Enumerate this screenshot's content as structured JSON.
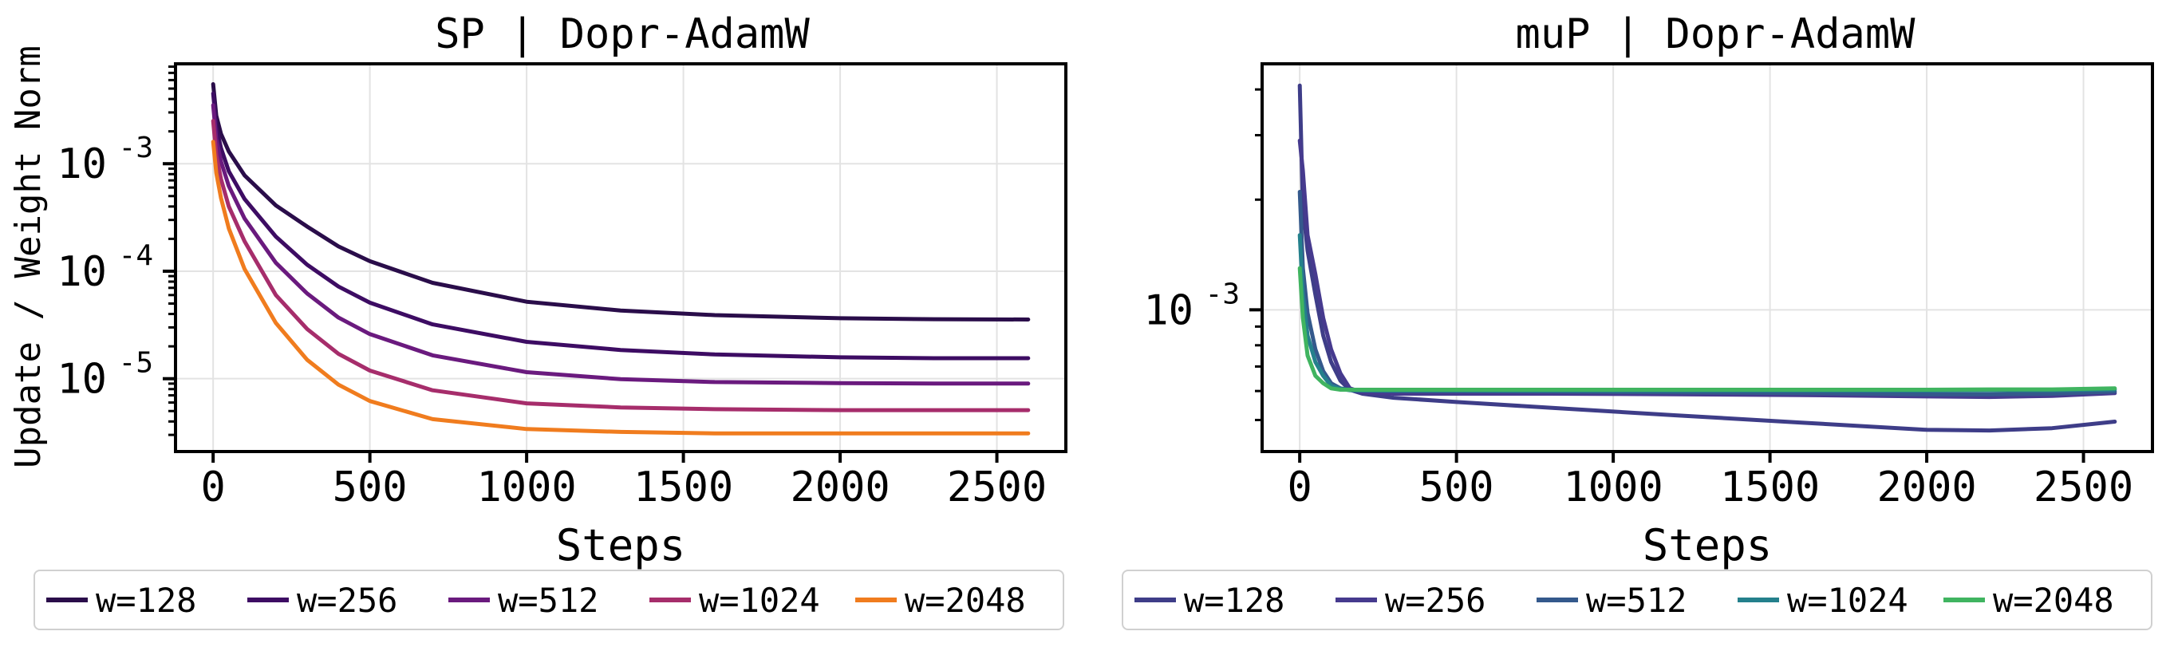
{
  "ylabel": "Update / Weight Norm",
  "chart_data": [
    {
      "type": "line",
      "title": "SP | Dopr-AdamW",
      "xlabel": "Steps",
      "ylabel": "Update / Weight Norm",
      "xlim": [
        -120,
        2720
      ],
      "ylim": [
        2.1e-06,
        0.0085
      ],
      "yscale": "log",
      "grid": true,
      "legend_position": "bottom",
      "x_ticks": [
        0,
        500,
        1000,
        1500,
        2000,
        2500
      ],
      "x_tick_labels": [
        "0",
        "500",
        "1000",
        "1500",
        "2000",
        "2500"
      ],
      "y_ticks": [
        1e-05,
        0.0001,
        0.001
      ],
      "y_tick_labels": [
        "10",
        "10",
        "10"
      ],
      "y_tick_exponents": [
        "-5",
        "-4",
        "-3"
      ],
      "series": [
        {
          "name": "w=128",
          "color": "#2a0d4a",
          "x": [
            0,
            10,
            25,
            50,
            100,
            200,
            300,
            400,
            500,
            700,
            1000,
            1300,
            1600,
            2000,
            2300,
            2600
          ],
          "y": [
            0.0055,
            0.0028,
            0.0019,
            0.0013,
            0.00078,
            0.00041,
            0.00026,
            0.00017,
            0.000124,
            7.8e-05,
            5.2e-05,
            4.3e-05,
            3.9e-05,
            3.65e-05,
            3.58e-05,
            3.55e-05
          ]
        },
        {
          "name": "w=256",
          "color": "#3d0c63",
          "x": [
            0,
            10,
            25,
            50,
            100,
            200,
            300,
            400,
            500,
            700,
            1000,
            1300,
            1600,
            2000,
            2300,
            2600
          ],
          "y": [
            0.0045,
            0.0022,
            0.0014,
            0.00085,
            0.00047,
            0.00021,
            0.000115,
            7.2e-05,
            5.1e-05,
            3.2e-05,
            2.2e-05,
            1.85e-05,
            1.68e-05,
            1.58e-05,
            1.55e-05,
            1.55e-05
          ]
        },
        {
          "name": "w=512",
          "color": "#6a1a7e",
          "x": [
            0,
            10,
            25,
            50,
            100,
            200,
            300,
            400,
            500,
            700,
            1000,
            1300,
            1600,
            2000,
            2300,
            2600
          ],
          "y": [
            0.0035,
            0.0017,
            0.00105,
            0.00062,
            0.00031,
            0.00012,
            6.2e-05,
            3.7e-05,
            2.6e-05,
            1.65e-05,
            1.15e-05,
            9.9e-06,
            9.3e-06,
            9.1e-06,
            9e-06,
            9e-06
          ]
        },
        {
          "name": "w=1024",
          "color": "#a62d6b",
          "x": [
            0,
            10,
            25,
            50,
            100,
            200,
            300,
            400,
            500,
            700,
            1000,
            1300,
            1600,
            2000,
            2300,
            2600
          ],
          "y": [
            0.0025,
            0.0012,
            0.00072,
            0.0004,
            0.00019,
            6e-05,
            2.9e-05,
            1.7e-05,
            1.19e-05,
            7.8e-06,
            5.9e-06,
            5.4e-06,
            5.2e-06,
            5.1e-06,
            5.1e-06,
            5.1e-06
          ]
        },
        {
          "name": "w=2048",
          "color": "#f07c1e",
          "x": [
            0,
            10,
            25,
            50,
            100,
            200,
            300,
            400,
            500,
            700,
            1000,
            1300,
            1600,
            2000,
            2300,
            2600
          ],
          "y": [
            0.0016,
            0.00082,
            0.00048,
            0.00025,
            0.000105,
            3.3e-05,
            1.5e-05,
            8.8e-06,
            6.2e-06,
            4.2e-06,
            3.4e-06,
            3.2e-06,
            3.1e-06,
            3.1e-06,
            3.1e-06,
            3.1e-06
          ]
        }
      ]
    },
    {
      "type": "line",
      "title": "muP | Dopr-AdamW",
      "xlabel": "Steps",
      "ylabel": "",
      "xlim": [
        -120,
        2720
      ],
      "ylim": [
        0.00041,
        0.0047
      ],
      "yscale": "log",
      "grid": true,
      "legend_position": "bottom",
      "x_ticks": [
        0,
        500,
        1000,
        1500,
        2000,
        2500
      ],
      "x_tick_labels": [
        "0",
        "500",
        "1000",
        "1500",
        "2000",
        "2500"
      ],
      "y_ticks": [
        0.001
      ],
      "y_tick_labels": [
        "10"
      ],
      "y_tick_exponents": [
        "-3"
      ],
      "series": [
        {
          "name": "w=128",
          "color": "#3e3d88",
          "x": [
            0,
            10,
            25,
            50,
            75,
            100,
            130,
            160,
            200,
            300,
            500,
            800,
            1200,
            1600,
            2000,
            2200,
            2400,
            2600
          ],
          "y": [
            0.0041,
            0.0019,
            0.00145,
            0.0011,
            0.00085,
            0.00072,
            0.00064,
            0.000605,
            0.00059,
            0.000575,
            0.00056,
            0.00054,
            0.000515,
            0.000492,
            0.00047,
            0.000468,
            0.000475,
            0.000495
          ]
        },
        {
          "name": "w=256",
          "color": "#463a8e",
          "x": [
            0,
            10,
            25,
            50,
            75,
            100,
            130,
            160,
            200,
            300,
            500,
            800,
            1200,
            1600,
            2000,
            2200,
            2400,
            2600
          ],
          "y": [
            0.0029,
            0.0024,
            0.0016,
            0.00125,
            0.00095,
            0.00078,
            0.00067,
            0.00061,
            0.000595,
            0.00059,
            0.00059,
            0.00059,
            0.000588,
            0.000585,
            0.00058,
            0.000578,
            0.000582,
            0.000592
          ]
        },
        {
          "name": "w=512",
          "color": "#34598c",
          "x": [
            0,
            10,
            25,
            50,
            75,
            100,
            130,
            160,
            200,
            300,
            500,
            800,
            1200,
            1600,
            2000,
            2200,
            2400,
            2600
          ],
          "y": [
            0.0021,
            0.0013,
            0.00098,
            0.00078,
            0.00068,
            0.00063,
            0.00061,
            0.000605,
            0.000602,
            0.0006,
            0.0006,
            0.000598,
            0.000595,
            0.000592,
            0.000588,
            0.000588,
            0.00059,
            0.000598
          ]
        },
        {
          "name": "w=1024",
          "color": "#24808c",
          "x": [
            0,
            10,
            25,
            50,
            75,
            100,
            130,
            160,
            200,
            300,
            500,
            800,
            1200,
            1600,
            2000,
            2200,
            2400,
            2600
          ],
          "y": [
            0.0016,
            0.0011,
            0.00085,
            0.00072,
            0.00066,
            0.00062,
            0.000608,
            0.000603,
            0.000602,
            0.000602,
            0.000602,
            0.000602,
            0.000602,
            0.000602,
            0.000602,
            0.000603,
            0.000603,
            0.000606
          ]
        },
        {
          "name": "w=2048",
          "color": "#40b460",
          "x": [
            0,
            10,
            25,
            50,
            75,
            100,
            130,
            160,
            200,
            300,
            500,
            800,
            1200,
            1600,
            2000,
            2200,
            2400,
            2600
          ],
          "y": [
            0.0013,
            0.00095,
            0.00075,
            0.00066,
            0.00063,
            0.00061,
            0.000605,
            0.000605,
            0.000605,
            0.000605,
            0.000605,
            0.000605,
            0.000605,
            0.000605,
            0.000605,
            0.000606,
            0.000606,
            0.00061
          ]
        }
      ]
    }
  ]
}
